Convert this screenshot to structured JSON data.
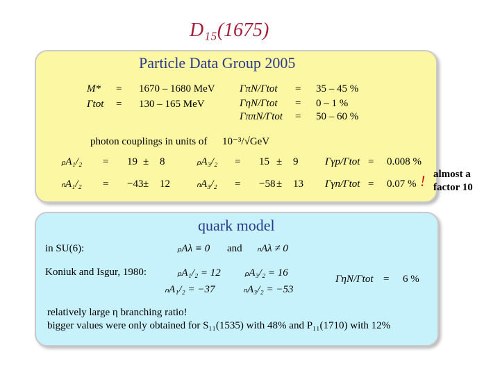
{
  "title": "D₁₅(1675)",
  "pdg": {
    "heading": "Particle Data Group 2005",
    "params": [
      {
        "symbol": "M*",
        "eq": "=",
        "value": "1670 – 1680 MeV"
      },
      {
        "symbol": "Γtot",
        "eq": "=",
        "value": "130 – 165 MeV"
      }
    ],
    "ratios": [
      {
        "symbol": "ΓπN/Γtot",
        "eq": "=",
        "value": "35 – 45 %"
      },
      {
        "symbol": "ΓηN/Γtot",
        "eq": "=",
        "value": "0 – 1 %"
      },
      {
        "symbol": "ΓππN/Γtot",
        "eq": "=",
        "value": "50 – 60 %"
      }
    ],
    "units_note": "photon couplings in units of",
    "units": "10⁻³/√GeV",
    "couplings": [
      [
        "ₚA₁/₂",
        "=",
        "19",
        "±",
        "8",
        "ₚA₃/₂",
        "=",
        "15",
        "±",
        "9",
        "Γγp/Γtot",
        "=",
        "0.008 %"
      ],
      [
        "ₙA₁/₂",
        "=",
        "−43",
        "±",
        "12",
        "ₙA₃/₂",
        "=",
        "−58",
        "±",
        "13",
        "Γγn/Γtot",
        "=",
        "0.07 %"
      ]
    ],
    "exclamation": "!"
  },
  "side_note": [
    "almost a",
    "factor 10"
  ],
  "quark": {
    "heading": "quark model",
    "su6_label": "in SU(6):",
    "su6_expr1": "ₚAλ ≡ 0",
    "and": "and",
    "su6_expr2": "ₙAλ ≠ 0",
    "ref": "Koniuk and Isgur, 1980:",
    "amps": [
      "ₚA₁/₂ = 12",
      "ₚA₃/₂ = 16",
      "ₙA₁/₂ = −37",
      "ₙA₃/₂ = −53"
    ],
    "ratio": {
      "symbol": "ΓηN/Γtot",
      "eq": "=",
      "value": "6 %"
    },
    "notes": [
      "relatively large η branching ratio!",
      "bigger values were only obtained for S₁₁(1535) with 48% and P₁₁(1710) with 12%"
    ]
  }
}
